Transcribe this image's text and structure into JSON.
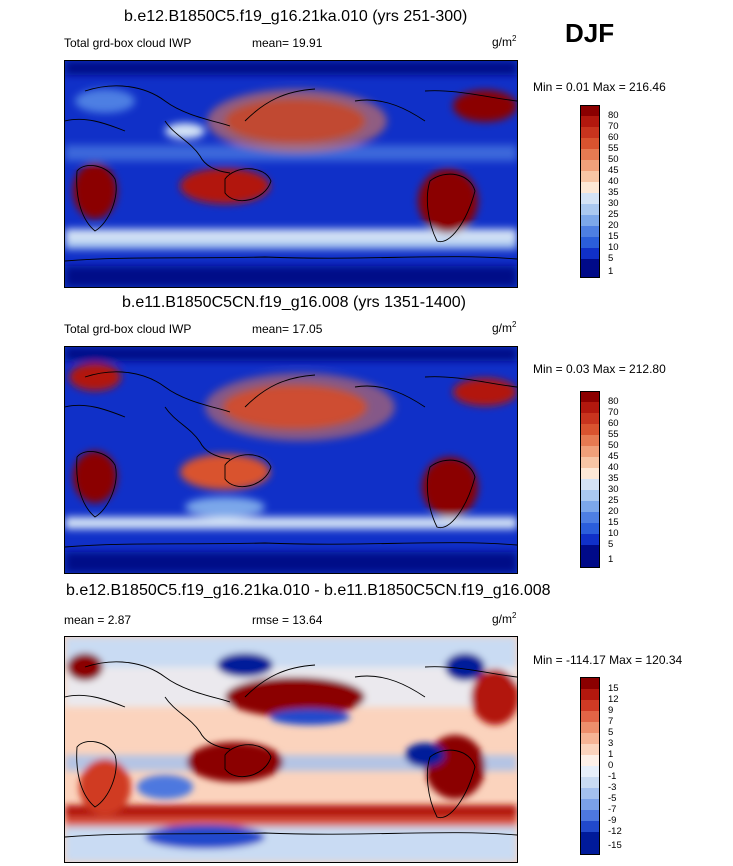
{
  "season": "DJF",
  "panels": [
    {
      "title": "b.e12.B1850C5.f19_g16.21ka.010 (yrs 251-300)",
      "variable": "Total grd-box cloud IWP",
      "stat": "mean=  19.91",
      "unit_base": "g/m",
      "unit_exp": "2",
      "minmax": "Min =   0.01 Max = 216.46"
    },
    {
      "title": "b.e11.B1850C5CN.f19_g16.008 (yrs 1351-1400)",
      "variable": "Total grd-box cloud IWP",
      "stat": "mean=  17.05",
      "unit_base": "g/m",
      "unit_exp": "2",
      "minmax": "Min =   0.03 Max = 212.80"
    },
    {
      "title": "b.e12.B1850C5.f19_g16.21ka.010 - b.e11.B1850C5CN.f19_g16.008",
      "stat_mean": "mean =   2.87",
      "stat_rmse": "rmse =  13.64",
      "unit_base": "g/m",
      "unit_exp": "2",
      "minmax": "Min = -114.17 Max = 120.34"
    }
  ],
  "chart_data": [
    {
      "type": "heatmap",
      "title": "b.e12.B1850C5.f19_g16.21ka.010 (yrs 251-300)",
      "field": "Total grd-box cloud IWP",
      "units": "g/m^2",
      "mean": 19.91,
      "min": 0.01,
      "max": 216.46,
      "colorbar_levels": [
        "80",
        "70",
        "60",
        "55",
        "50",
        "45",
        "40",
        "35",
        "30",
        "25",
        "20",
        "15",
        "10",
        "5",
        "1"
      ],
      "colors": [
        "#8b0000",
        "#b2180e",
        "#c8341e",
        "#d9532f",
        "#e67a52",
        "#f0a07a",
        "#f7c5a5",
        "#fde8d6",
        "#d4e3f6",
        "#aac8f0",
        "#7ca7ea",
        "#4e7fe3",
        "#2b5edb",
        "#1030c8",
        "#000a88"
      ]
    },
    {
      "type": "heatmap",
      "title": "b.e11.B1850C5CN.f19_g16.008 (yrs 1351-1400)",
      "field": "Total grd-box cloud IWP",
      "units": "g/m^2",
      "mean": 17.05,
      "min": 0.03,
      "max": 212.8,
      "colorbar_levels": [
        "80",
        "70",
        "60",
        "55",
        "50",
        "45",
        "40",
        "35",
        "30",
        "25",
        "20",
        "15",
        "10",
        "5",
        "1"
      ],
      "colors": [
        "#8b0000",
        "#b2180e",
        "#c8341e",
        "#d9532f",
        "#e67a52",
        "#f0a07a",
        "#f7c5a5",
        "#fde8d6",
        "#d4e3f6",
        "#aac8f0",
        "#7ca7ea",
        "#4e7fe3",
        "#2b5edb",
        "#1030c8",
        "#000a88"
      ]
    },
    {
      "type": "heatmap",
      "title": "b.e12.B1850C5.f19_g16.21ka.010 - b.e11.B1850C5CN.f19_g16.008",
      "field": "difference",
      "units": "g/m^2",
      "mean": 2.87,
      "rmse": 13.64,
      "min": -114.17,
      "max": 120.34,
      "colorbar_levels": [
        "15",
        "12",
        "9",
        "7",
        "5",
        "3",
        "1",
        "0",
        "-1",
        "-3",
        "-5",
        "-7",
        "-9",
        "-12",
        "-15"
      ],
      "colors": [
        "#8b0000",
        "#b2180e",
        "#d03a24",
        "#e26446",
        "#ee8e6c",
        "#f6b395",
        "#fbd3bd",
        "#fdf0e8",
        "#e7effa",
        "#c9dbf3",
        "#a4c0ee",
        "#7aa0e8",
        "#4d78df",
        "#2149cc",
        "#001a9a"
      ]
    }
  ]
}
